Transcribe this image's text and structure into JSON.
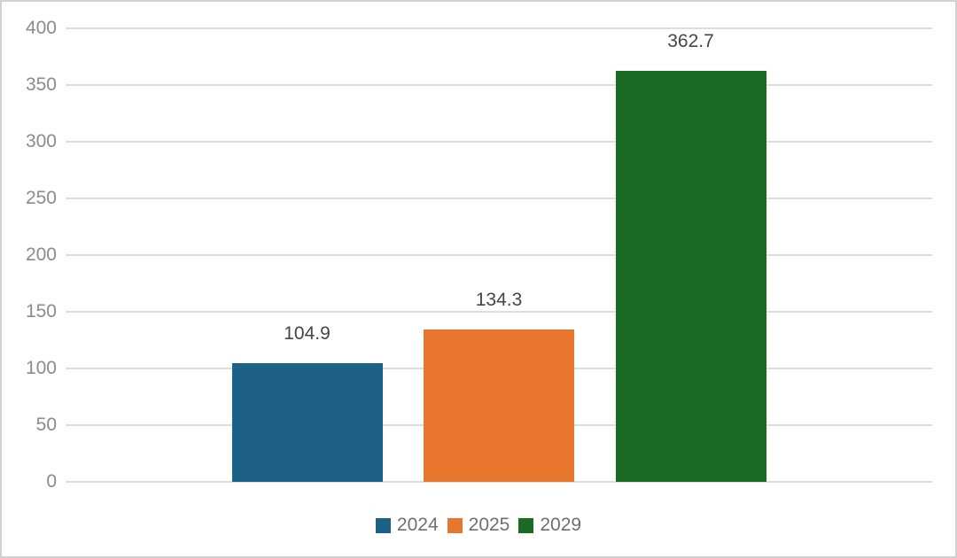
{
  "chart_data": {
    "type": "bar",
    "categories": [
      "2024",
      "2025",
      "2029"
    ],
    "values": [
      104.9,
      134.3,
      362.7
    ],
    "value_labels": [
      "104.9",
      "134.3",
      "362.7"
    ],
    "series_colors": [
      "#1d6286",
      "#e8762f",
      "#1c6b24"
    ],
    "title": "",
    "xlabel": "",
    "ylabel": "",
    "ylim": [
      0,
      400
    ],
    "yticks": [
      0,
      50,
      100,
      150,
      200,
      250,
      300,
      350,
      400
    ],
    "grid": "horizontal",
    "legend": {
      "position": "bottom",
      "entries": [
        {
          "label": "2024",
          "color": "#1d6286"
        },
        {
          "label": "2025",
          "color": "#e8762f"
        },
        {
          "label": "2029",
          "color": "#1c6b24"
        }
      ]
    },
    "style": {
      "gridline_color": "#dedede",
      "axis_label_color": "#8b8b90",
      "value_label_color": "#454545",
      "legend_label_color": "#6f6f73",
      "frame_border_color": "#d1d1d1",
      "background_color": "#ffffff"
    }
  }
}
